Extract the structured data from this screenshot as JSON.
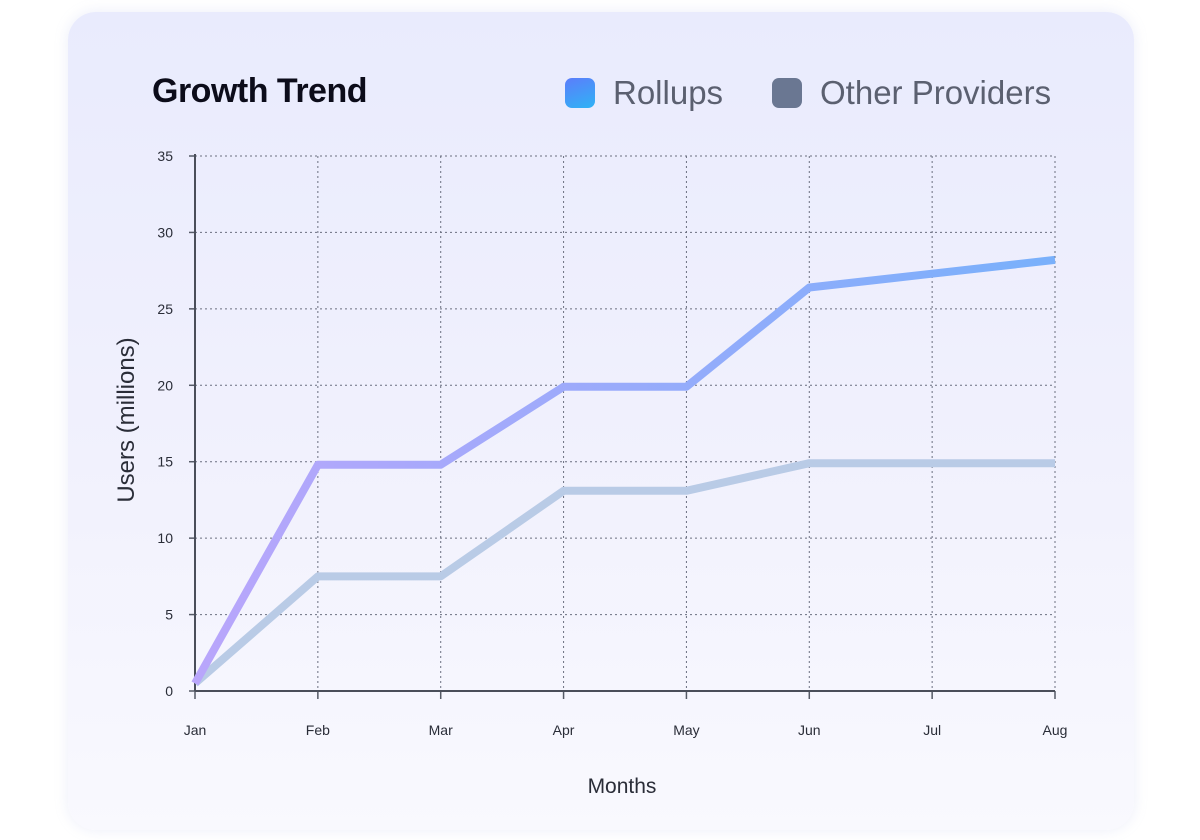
{
  "chart_data": {
    "type": "line",
    "title": "Growth Trend",
    "xlabel": "Months",
    "ylabel": "Users (millions)",
    "categories": [
      "Jan",
      "Feb",
      "Mar",
      "Apr",
      "May",
      "Jun",
      "Jul",
      "Aug"
    ],
    "ylim": [
      0,
      35
    ],
    "yticks": [
      0,
      5,
      10,
      15,
      20,
      25,
      30,
      35
    ],
    "grid": true,
    "legend_position": "top-right",
    "series": [
      {
        "name": "Rollups",
        "x": [
          0,
          1,
          2,
          3,
          4,
          5,
          6,
          7
        ],
        "values": [
          0.5,
          14.8,
          14.8,
          19.9,
          19.9,
          26.4,
          27.3,
          28.2
        ],
        "color_start": "#b9a6fb",
        "color_end": "#79b0fb"
      },
      {
        "name": "Other Providers",
        "x": [
          0,
          1,
          2,
          3,
          4,
          5,
          6,
          7
        ],
        "values": [
          0.5,
          7.5,
          7.5,
          13.1,
          13.1,
          14.9,
          14.9,
          14.9
        ],
        "color": "#b9cbe6",
        "legend_color": "#6a7792"
      }
    ]
  }
}
